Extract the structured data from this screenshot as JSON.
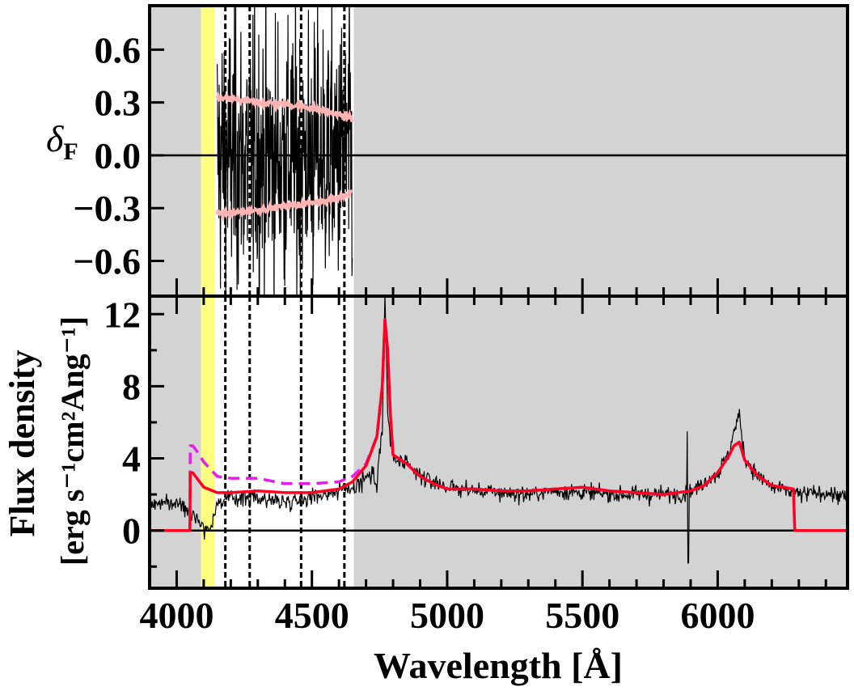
{
  "chart_data": [
    {
      "type": "line",
      "panel": "top",
      "ylabel": "δ",
      "ylabel_sub": "F",
      "yticks": [
        "0.6",
        "0.3",
        "0.0",
        "−0.3",
        "−0.6"
      ],
      "ytick_values": [
        0.6,
        0.3,
        0.0,
        -0.3,
        -0.6
      ],
      "ylim": [
        -0.8,
        0.85
      ],
      "xlim": [
        3900,
        6480
      ],
      "series": [
        {
          "role": "residual",
          "color": "#000000",
          "x_range": [
            4150,
            4650
          ]
        },
        {
          "role": "upper envelope",
          "color": "#ffb3b3",
          "x": [
            4150,
            4200,
            4300,
            4400,
            4500,
            4600,
            4650
          ],
          "y": [
            0.32,
            0.32,
            0.3,
            0.29,
            0.27,
            0.23,
            0.21
          ]
        },
        {
          "role": "lower envelope",
          "color": "#ffb3b3",
          "x": [
            4150,
            4200,
            4300,
            4400,
            4500,
            4600,
            4650
          ],
          "y": [
            -0.33,
            -0.33,
            -0.31,
            -0.29,
            -0.27,
            -0.24,
            -0.21
          ]
        }
      ],
      "zero_line": 0.0
    },
    {
      "type": "line",
      "panel": "bottom",
      "xlabel": "Wavelength  [Å]",
      "ylabel_line1": "Flux density",
      "ylabel_line2": "[erg s⁻¹cm²Ang⁻¹]",
      "xticks": [
        "4000",
        "4500",
        "5000",
        "5500",
        "6000"
      ],
      "xtick_values": [
        4000,
        4500,
        5000,
        5500,
        6000
      ],
      "yticks": [
        "12",
        "8",
        "4",
        "0"
      ],
      "ytick_values": [
        12,
        8,
        4,
        0
      ],
      "ylim": [
        -3.2,
        13.0
      ],
      "xlim": [
        3900,
        6480
      ],
      "series": [
        {
          "role": "observed spectrum",
          "color": "#000000",
          "x": [
            3900,
            4000,
            4050,
            4100,
            4120,
            4150,
            4200,
            4300,
            4400,
            4500,
            4600,
            4650,
            4700,
            4740,
            4760,
            4770,
            4780,
            4800,
            4850,
            4900,
            5000,
            5100,
            5200,
            5300,
            5400,
            5500,
            5600,
            5700,
            5800,
            5870,
            5900,
            5920,
            5950,
            6000,
            6040,
            6060,
            6080,
            6100,
            6150,
            6200,
            6280,
            6300,
            6400,
            6480
          ],
          "y": [
            1.5,
            1.5,
            1.2,
            0.2,
            0.0,
            1.5,
            1.8,
            1.8,
            1.6,
            1.9,
            2.2,
            2.4,
            3.0,
            3.0,
            5.5,
            13.0,
            6.5,
            4.0,
            3.6,
            3.0,
            2.4,
            2.2,
            2.1,
            2.0,
            2.2,
            2.1,
            2.0,
            2.0,
            2.0,
            2.0,
            2.2,
            2.3,
            2.7,
            3.2,
            4.2,
            5.5,
            6.4,
            4.0,
            3.0,
            2.4,
            2.1,
            2.0,
            2.1,
            1.8
          ]
        },
        {
          "role": "model (solid)",
          "color": "#ff0022",
          "x": [
            3900,
            4049,
            4050,
            4060,
            4080,
            4100,
            4150,
            4200,
            4300,
            4400,
            4500,
            4600,
            4650,
            4700,
            4740,
            4760,
            4770,
            4780,
            4790,
            4800,
            4850,
            4900,
            4950,
            5000,
            5100,
            5200,
            5300,
            5400,
            5500,
            5600,
            5700,
            5800,
            5900,
            5950,
            6000,
            6040,
            6060,
            6080,
            6100,
            6150,
            6200,
            6280,
            6285,
            6480
          ],
          "y": [
            0.0,
            0.0,
            3.2,
            3.2,
            2.8,
            2.4,
            2.1,
            2.1,
            2.2,
            2.1,
            2.1,
            2.3,
            2.7,
            3.6,
            5.2,
            8.0,
            11.7,
            10.0,
            6.5,
            4.2,
            3.7,
            3.0,
            2.6,
            2.3,
            2.3,
            2.2,
            2.2,
            2.3,
            2.4,
            2.2,
            2.1,
            2.0,
            2.2,
            2.5,
            3.2,
            4.1,
            4.7,
            4.9,
            3.9,
            3.0,
            2.5,
            2.3,
            0.0,
            0.0
          ]
        },
        {
          "role": "model (dashed)",
          "color": "#e81ce8",
          "dashed": true,
          "x": [
            3900,
            4049,
            4050,
            4060,
            4080,
            4100,
            4150,
            4200,
            4300,
            4400,
            4500,
            4600,
            4650,
            4700,
            4740,
            4760,
            4770,
            4780,
            4790,
            4800,
            4850,
            4900,
            4950,
            5000,
            5100,
            5200,
            5300,
            5400,
            5500,
            5600,
            5700,
            5800,
            5900,
            5950,
            6000,
            6040,
            6060,
            6080,
            6100,
            6150,
            6200,
            6280,
            6285,
            6480
          ],
          "y": [
            0.0,
            0.0,
            4.7,
            4.7,
            4.3,
            3.8,
            3.0,
            2.9,
            2.9,
            2.6,
            2.6,
            2.7,
            3.0,
            3.7,
            5.2,
            8.0,
            11.7,
            10.0,
            6.5,
            4.2,
            3.7,
            3.0,
            2.6,
            2.3,
            2.3,
            2.2,
            2.2,
            2.3,
            2.4,
            2.2,
            2.1,
            2.0,
            2.2,
            2.5,
            3.2,
            4.1,
            4.7,
            4.9,
            3.9,
            3.0,
            2.5,
            2.3,
            0.0,
            0.0
          ]
        }
      ],
      "zero_line": 0.0
    }
  ],
  "shared": {
    "masked_regions": [
      [
        3900,
        4090
      ],
      [
        4655,
        6480
      ]
    ],
    "masked_color": "#d3d3d3",
    "highlight_band": [
      4090,
      4140
    ],
    "highlight_color": "#ffff80",
    "vertical_dashed_lines": [
      4180,
      4270,
      4460,
      4620
    ]
  }
}
